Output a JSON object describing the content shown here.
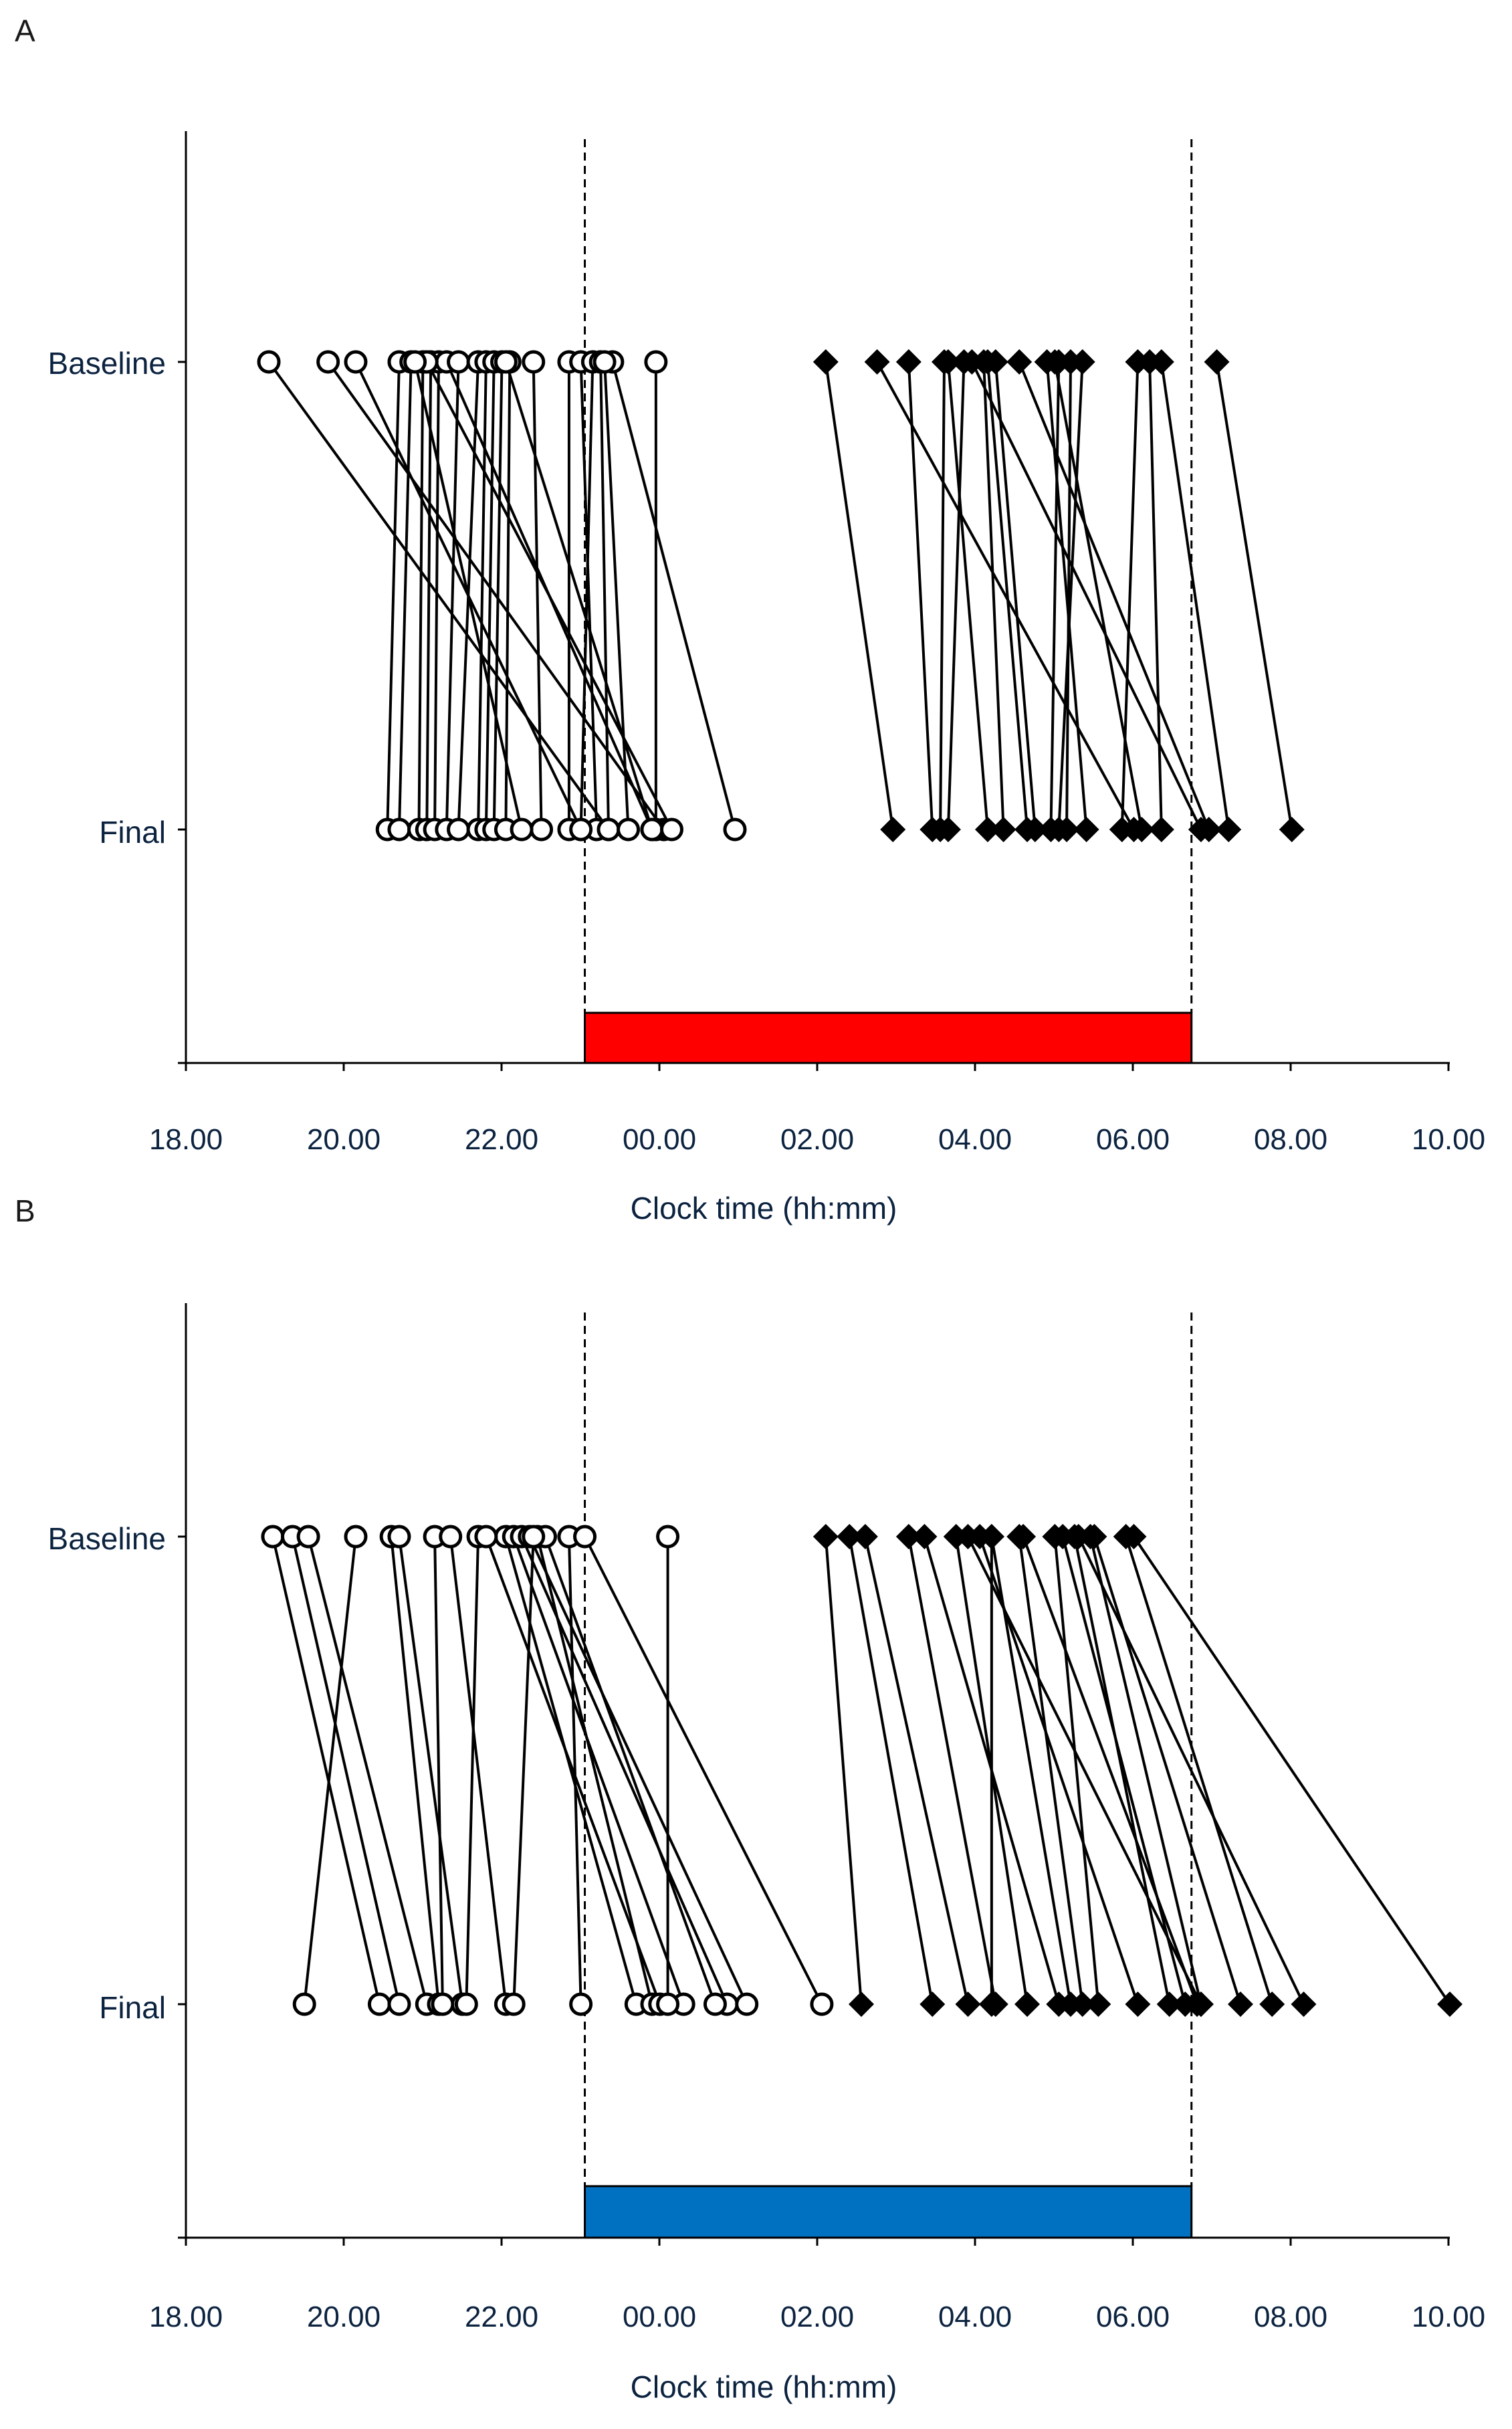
{
  "colors": {
    "axis": "#000000",
    "line": "#000000",
    "circle_fill": "#ffffff",
    "diamond_fill": "#000000",
    "panel_a_bar": "#ff0000",
    "panel_b_bar": "#0070c0"
  },
  "chart_data": [
    {
      "panel": "A",
      "type": "scatter",
      "xlabel": "Clock time (hh:mm)",
      "xlim": [
        18,
        34
      ],
      "x_ticks": [
        18,
        20,
        22,
        24,
        26,
        28,
        30,
        32,
        34
      ],
      "x_tick_labels": [
        "18.00",
        "20.00",
        "22.00",
        "00.00",
        "02.00",
        "04.00",
        "06.00",
        "08.00",
        "10.00"
      ],
      "categories": [
        "Baseline",
        "Final"
      ],
      "reference_lines": [
        23.05,
        30.73
      ],
      "bar": {
        "start": 23.05,
        "end": 30.73,
        "color": "#ff0000"
      },
      "series": [
        {
          "marker": "circle",
          "pairs": [
            [
              19.05,
              23.35
            ],
            [
              19.8,
              24.05
            ],
            [
              20.15,
              23.0
            ],
            [
              20.7,
              20.55
            ],
            [
              20.85,
              20.7
            ],
            [
              21.0,
              20.95
            ],
            [
              21.1,
              21.05
            ],
            [
              21.2,
              21.15
            ],
            [
              21.3,
              23.9
            ],
            [
              21.45,
              21.3
            ],
            [
              21.7,
              21.45
            ],
            [
              21.8,
              21.7
            ],
            [
              21.9,
              21.8
            ],
            [
              22.0,
              21.9
            ],
            [
              22.1,
              22.05
            ],
            [
              22.4,
              22.5
            ],
            [
              22.85,
              22.85
            ],
            [
              23.0,
              23.2
            ],
            [
              23.15,
              23.0
            ],
            [
              23.25,
              23.35
            ],
            [
              23.4,
              24.95
            ],
            [
              23.95,
              23.95
            ],
            [
              23.3,
              23.6
            ],
            [
              22.05,
              23.9
            ],
            [
              21.05,
              24.15
            ],
            [
              20.9,
              22.25
            ]
          ]
        },
        {
          "marker": "diamond",
          "pairs": [
            [
              26.1,
              26.95
            ],
            [
              26.75,
              30.0
            ],
            [
              27.15,
              27.45
            ],
            [
              27.6,
              27.55
            ],
            [
              27.85,
              27.65
            ],
            [
              27.95,
              30.85
            ],
            [
              28.1,
              28.35
            ],
            [
              28.25,
              28.75
            ],
            [
              28.55,
              30.95
            ],
            [
              28.9,
              29.4
            ],
            [
              29.05,
              28.95
            ],
            [
              29.2,
              29.15
            ],
            [
              29.35,
              29.05
            ],
            [
              30.05,
              29.85
            ],
            [
              30.2,
              30.35
            ],
            [
              30.35,
              31.2
            ],
            [
              31.05,
              32.0
            ],
            [
              27.65,
              28.15
            ],
            [
              29.0,
              30.1
            ],
            [
              28.15,
              28.65
            ]
          ]
        }
      ]
    },
    {
      "panel": "B",
      "type": "scatter",
      "xlabel": "Clock time (hh:mm)",
      "xlim": [
        18,
        34
      ],
      "x_ticks": [
        18,
        20,
        22,
        24,
        26,
        28,
        30,
        32,
        34
      ],
      "x_tick_labels": [
        "18.00",
        "20.00",
        "22.00",
        "00.00",
        "02.00",
        "04.00",
        "06.00",
        "08.00",
        "10.00"
      ],
      "categories": [
        "Baseline",
        "Final"
      ],
      "reference_lines": [
        23.05,
        30.73
      ],
      "bar": {
        "start": 23.05,
        "end": 30.73,
        "color": "#0070c0"
      },
      "series": [
        {
          "marker": "circle",
          "pairs": [
            [
              19.1,
              20.45
            ],
            [
              19.35,
              20.7
            ],
            [
              19.55,
              21.05
            ],
            [
              20.15,
              19.5
            ],
            [
              20.6,
              21.2
            ],
            [
              20.7,
              21.5
            ],
            [
              21.15,
              21.25
            ],
            [
              21.35,
              22.05
            ],
            [
              21.7,
              21.55
            ],
            [
              22.05,
              23.7
            ],
            [
              22.15,
              24.3
            ],
            [
              22.25,
              24.85
            ],
            [
              22.35,
              25.1
            ],
            [
              22.45,
              23.9
            ],
            [
              22.55,
              24.7
            ],
            [
              22.85,
              23.0
            ],
            [
              23.05,
              26.05
            ],
            [
              22.4,
              22.15
            ],
            [
              21.8,
              24.0
            ],
            [
              24.1,
              24.1
            ]
          ]
        },
        {
          "marker": "diamond",
          "pairs": [
            [
              26.1,
              26.55
            ],
            [
              26.4,
              27.45
            ],
            [
              26.6,
              27.9
            ],
            [
              27.15,
              28.25
            ],
            [
              27.35,
              29.05
            ],
            [
              27.75,
              28.65
            ],
            [
              28.2,
              28.2
            ],
            [
              28.55,
              29.35
            ],
            [
              29.0,
              29.55
            ],
            [
              29.1,
              30.65
            ],
            [
              29.25,
              30.45
            ],
            [
              29.45,
              30.85
            ],
            [
              29.9,
              31.75
            ],
            [
              30.0,
              34.0
            ],
            [
              28.05,
              30.05
            ],
            [
              29.5,
              31.35
            ],
            [
              29.3,
              32.15
            ],
            [
              28.6,
              30.8
            ],
            [
              28.2,
              29.2
            ],
            [
              27.9,
              30.85
            ]
          ]
        }
      ]
    }
  ]
}
